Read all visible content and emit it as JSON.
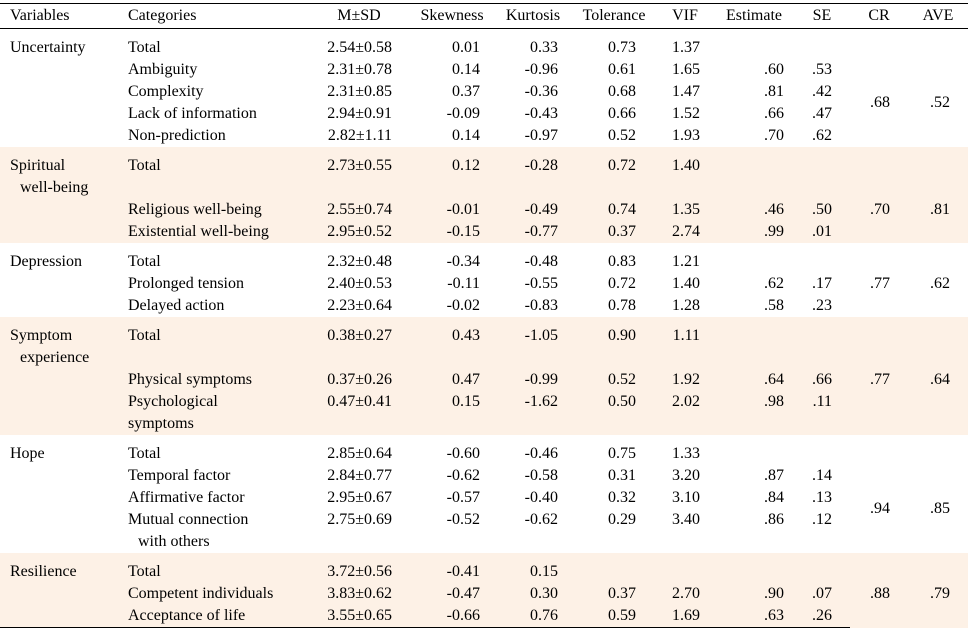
{
  "headers": [
    "Variables",
    "Categories",
    "M±SD",
    "Skewness",
    "Kurtosis",
    "Tolerance",
    "VIF",
    "Estimate",
    "SE",
    "CR",
    "AVE"
  ],
  "groups": [
    {
      "variable": [
        "Uncertainty"
      ],
      "cr": ".68",
      "ave": ".52",
      "rows": [
        {
          "cat": [
            "Total"
          ],
          "msd": "2.54±0.58",
          "skew": "0.01",
          "kurt": "0.33",
          "tol": "0.73",
          "vif": "1.37",
          "est": "",
          "se": ""
        },
        {
          "cat": [
            "Ambiguity"
          ],
          "msd": "2.31±0.78",
          "skew": "0.14",
          "kurt": "-0.96",
          "tol": "0.61",
          "vif": "1.65",
          "est": ".60",
          "se": ".53"
        },
        {
          "cat": [
            "Complexity"
          ],
          "msd": "2.31±0.85",
          "skew": "0.37",
          "kurt": "-0.36",
          "tol": "0.68",
          "vif": "1.47",
          "est": ".81",
          "se": ".42"
        },
        {
          "cat": [
            "Lack of  information"
          ],
          "msd": "2.94±0.91",
          "skew": "-0.09",
          "kurt": "-0.43",
          "tol": "0.66",
          "vif": "1.52",
          "est": ".66",
          "se": ".47"
        },
        {
          "cat": [
            "Non-prediction"
          ],
          "msd": "2.82±1.11",
          "skew": "0.14",
          "kurt": "-0.97",
          "tol": "0.52",
          "vif": "1.93",
          "est": ".70",
          "se": ".62"
        }
      ]
    },
    {
      "variable": [
        "Spiritual",
        "well-being"
      ],
      "cr": ".70",
      "ave": ".81",
      "rows": [
        {
          "cat": [
            "Total"
          ],
          "msd": "2.73±0.55",
          "skew": "0.12",
          "kurt": "-0.28",
          "tol": "0.72",
          "vif": "1.40",
          "est": "",
          "se": ""
        },
        {
          "cat": [
            "Religious well-being"
          ],
          "msd": "2.55±0.74",
          "skew": "-0.01",
          "kurt": "-0.49",
          "tol": "0.74",
          "vif": "1.35",
          "est": ".46",
          "se": ".50"
        },
        {
          "cat": [
            "Existential well-being"
          ],
          "msd": "2.95±0.52",
          "skew": "-0.15",
          "kurt": "-0.77",
          "tol": "0.37",
          "vif": "2.74",
          "est": ".99",
          "se": ".01"
        }
      ]
    },
    {
      "variable": [
        "Depression"
      ],
      "cr": ".77",
      "ave": ".62",
      "rows": [
        {
          "cat": [
            "Total"
          ],
          "msd": "2.32±0.48",
          "skew": "-0.34",
          "kurt": "-0.48",
          "tol": "0.83",
          "vif": "1.21",
          "est": "",
          "se": ""
        },
        {
          "cat": [
            "Prolonged tension"
          ],
          "msd": "2.40±0.53",
          "skew": "-0.11",
          "kurt": "-0.55",
          "tol": "0.72",
          "vif": "1.40",
          "est": ".62",
          "se": ".17"
        },
        {
          "cat": [
            "Delayed action"
          ],
          "msd": "2.23±0.64",
          "skew": "-0.02",
          "kurt": "-0.83",
          "tol": "0.78",
          "vif": "1.28",
          "est": ".58",
          "se": ".23"
        }
      ]
    },
    {
      "variable": [
        "Symptom",
        "experience"
      ],
      "cr": ".77",
      "ave": ".64",
      "rows": [
        {
          "cat": [
            "Total"
          ],
          "msd": "0.38±0.27",
          "skew": "0.43",
          "kurt": "-1.05",
          "tol": "0.90",
          "vif": "1.11",
          "est": "",
          "se": ""
        },
        {
          "cat": [
            "Physical symptoms"
          ],
          "msd": "0.37±0.26",
          "skew": "0.47",
          "kurt": "-0.99",
          "tol": "0.52",
          "vif": "1.92",
          "est": ".64",
          "se": ".66"
        },
        {
          "cat": [
            "Psychological",
            "symptoms"
          ],
          "msd": "0.47±0.41",
          "skew": "0.15",
          "kurt": "-1.62",
          "tol": "0.50",
          "vif": "2.02",
          "est": ".98",
          "se": ".11"
        }
      ]
    },
    {
      "variable": [
        "Hope"
      ],
      "cr": ".94",
      "ave": ".85",
      "rows": [
        {
          "cat": [
            "Total"
          ],
          "msd": "2.85±0.64",
          "skew": "-0.60",
          "kurt": "-0.46",
          "tol": "0.75",
          "vif": "1.33",
          "est": "",
          "se": ""
        },
        {
          "cat": [
            "Temporal factor"
          ],
          "msd": "2.84±0.77",
          "skew": "-0.62",
          "kurt": "-0.58",
          "tol": "0.31",
          "vif": "3.20",
          "est": ".87",
          "se": ".14"
        },
        {
          "cat": [
            "Affirmative factor"
          ],
          "msd": "2.95±0.67",
          "skew": "-0.57",
          "kurt": "-0.40",
          "tol": "0.32",
          "vif": "3.10",
          "est": ".84",
          "se": ".13"
        },
        {
          "cat": [
            "Mutual connection",
            "with others"
          ],
          "msd": "2.75±0.69",
          "skew": "-0.52",
          "kurt": "-0.62",
          "tol": "0.29",
          "vif": "3.40",
          "est": ".86",
          "se": ".12"
        }
      ]
    },
    {
      "variable": [
        "Resilience"
      ],
      "cr": ".88",
      "ave": ".79",
      "rows": [
        {
          "cat": [
            "Total"
          ],
          "msd": "3.72±0.56",
          "skew": "-0.41",
          "kurt": "0.15",
          "tol": "",
          "vif": "",
          "est": "",
          "se": ""
        },
        {
          "cat": [
            "Competent individuals"
          ],
          "msd": "3.83±0.62",
          "skew": "-0.47",
          "kurt": "0.30",
          "tol": "0.37",
          "vif": "2.70",
          "est": ".90",
          "se": ".07"
        },
        {
          "cat": [
            "Acceptance of  life"
          ],
          "msd": "3.55±0.65",
          "skew": "-0.66",
          "kurt": "0.76",
          "tol": "0.59",
          "vif": "1.69",
          "est": ".63",
          "se": ".26"
        }
      ]
    }
  ],
  "colors": {
    "band": "#fdf1e6",
    "rule": "#000000"
  }
}
